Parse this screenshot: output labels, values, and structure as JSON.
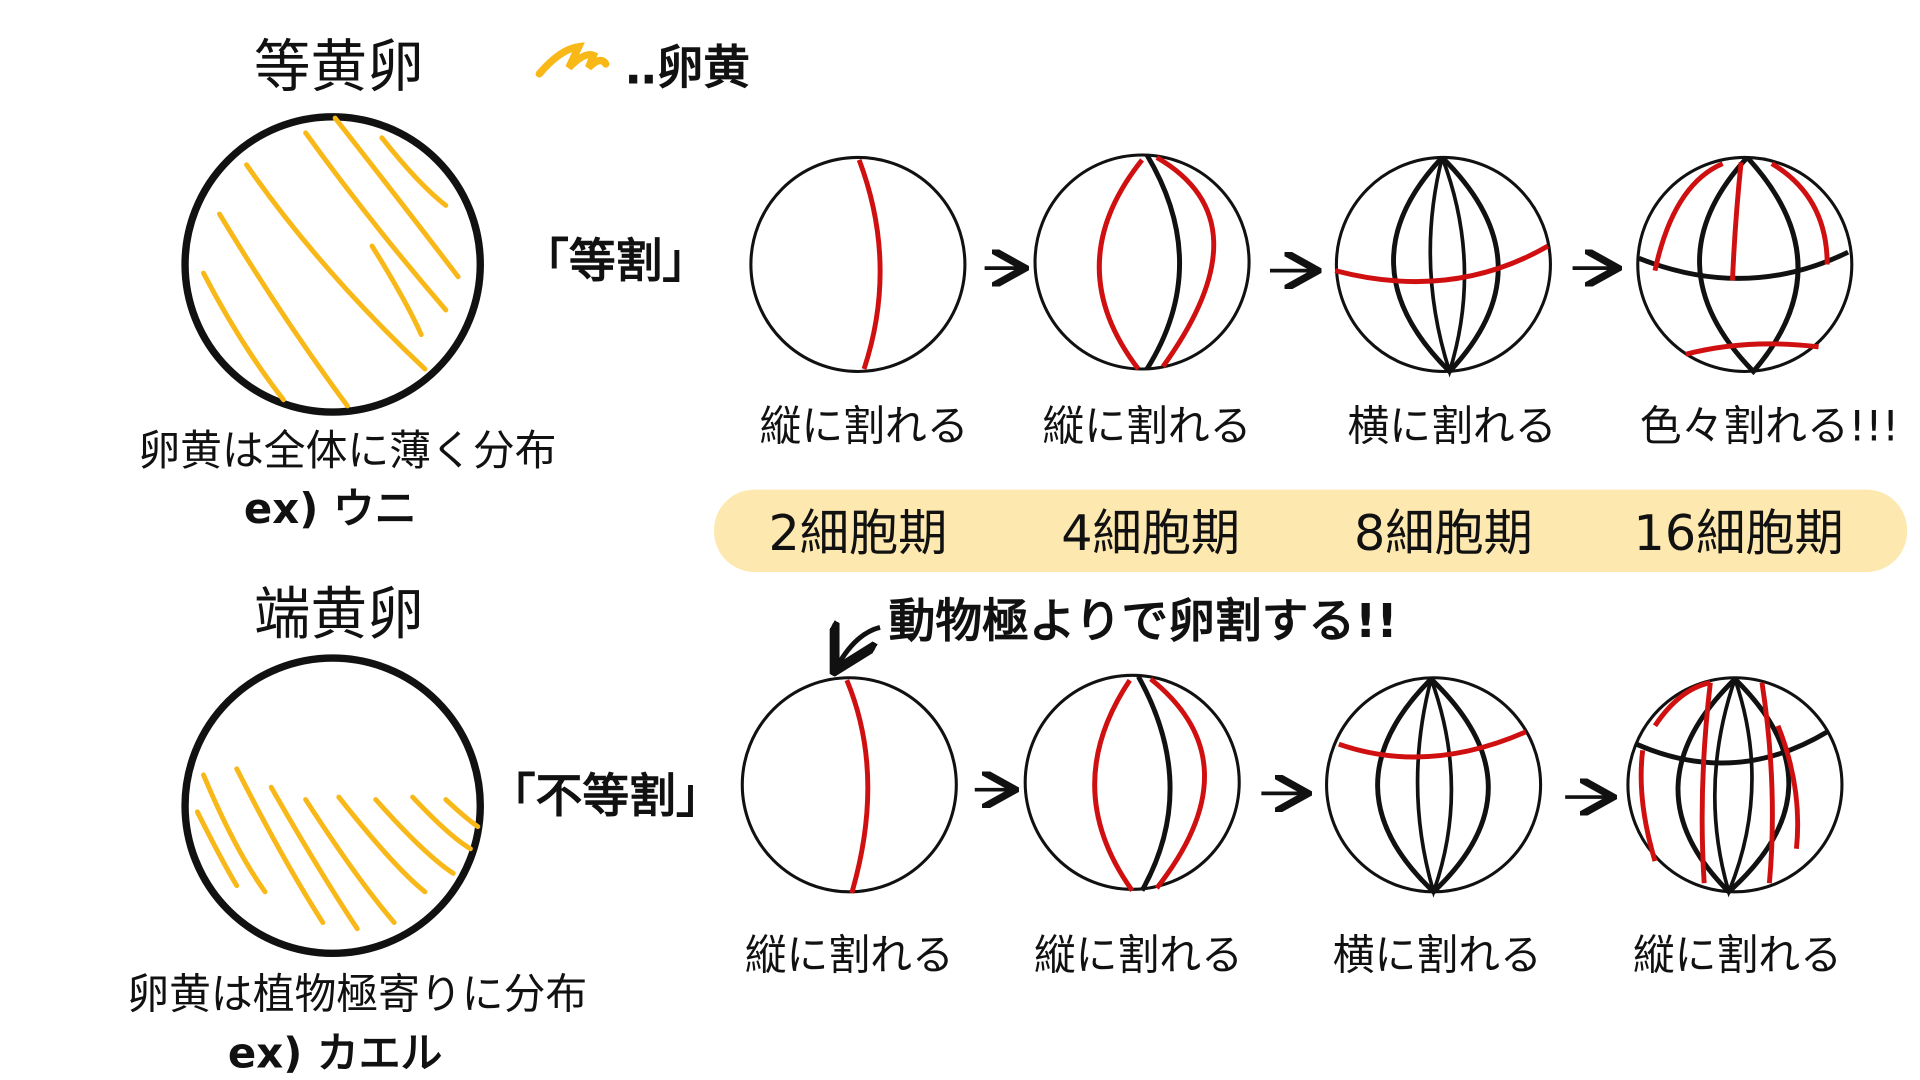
{
  "colors": {
    "yolk": "#f8b818",
    "division": "#d01010",
    "line": "#111111",
    "band": "#fde9b0"
  },
  "legend": {
    "text": "‥卵黄"
  },
  "isolecithal": {
    "title": "等黄卵",
    "cleavage_type": "「等割」",
    "description": "卵黄は全体に薄く分布",
    "example": "ex) ウニ",
    "stages": [
      "縦に割れる",
      "縦に割れる",
      "横に割れる",
      "色々割れる!!!"
    ]
  },
  "stage_band": [
    "2細胞期",
    "4細胞期",
    "8細胞期",
    "16細胞期"
  ],
  "telolecithal": {
    "title": "端黄卵",
    "cleavage_type": "「不等割」",
    "note": "動物極よりで卵割する!!",
    "description": "卵黄は植物極寄りに分布",
    "example": "ex) カエル",
    "stages": [
      "縦に割れる",
      "縦に割れる",
      "横に割れる",
      "縦に割れる"
    ]
  }
}
